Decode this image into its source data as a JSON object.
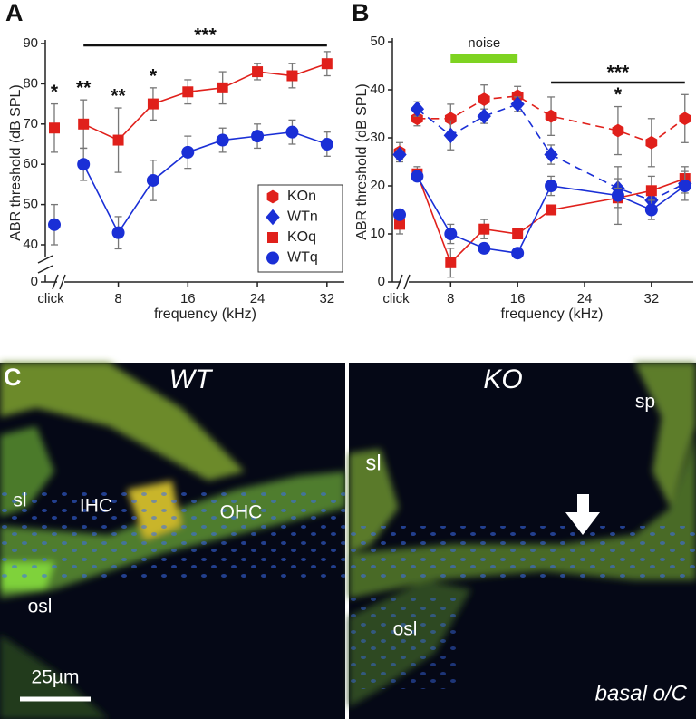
{
  "chart_data": [
    {
      "panel": "A",
      "type": "line",
      "y_label": "ABR threshold (dB SPL)",
      "x_label": "frequency (kHz)",
      "xlim": [
        2,
        34
      ],
      "xticks": [
        8,
        16,
        24,
        32
      ],
      "ylim": [
        0,
        90
      ],
      "y_break": [
        0,
        40
      ],
      "yticks": [
        0,
        40,
        50,
        60,
        70,
        80,
        90
      ],
      "click": {
        "label": "click",
        "annotation": "*"
      },
      "series": [
        {
          "color": "#e0201b",
          "marker": "square",
          "dash": false,
          "click_value": 69,
          "click_error": 6,
          "x": [
            4,
            8,
            12,
            16,
            20,
            24,
            28,
            32
          ],
          "values": [
            70,
            66,
            75,
            78,
            79,
            83,
            82,
            85
          ],
          "errors": [
            6,
            8,
            4,
            3,
            4,
            2,
            3,
            3
          ]
        },
        {
          "color": "#1a2fd6",
          "marker": "circle",
          "dash": false,
          "click_value": 45,
          "click_error": 5,
          "x": [
            4,
            8,
            12,
            16,
            20,
            24,
            28,
            32
          ],
          "values": [
            60,
            43,
            56,
            63,
            66,
            67,
            68,
            65
          ],
          "errors": [
            4,
            4,
            5,
            4,
            3,
            3,
            3,
            3
          ]
        }
      ],
      "annotations": [
        {
          "text": "**",
          "x": 4
        },
        {
          "text": "**",
          "x": 8
        },
        {
          "text": "*",
          "x": 12
        }
      ],
      "bracket": {
        "text": "***",
        "x": [
          4,
          32
        ]
      },
      "legend": [
        {
          "name": "KOn",
          "color": "#e0201b",
          "marker": "hexagon"
        },
        {
          "name": "WTn",
          "color": "#1a2fd6",
          "marker": "diamond"
        },
        {
          "name": "KOq",
          "color": "#e0201b",
          "marker": "square"
        },
        {
          "name": "WTq",
          "color": "#1a2fd6",
          "marker": "circle"
        }
      ],
      "legend_position": "lower right"
    },
    {
      "panel": "B",
      "type": "line",
      "y_label": "ABR threshold (dB SPL)",
      "x_label": "frequency (kHz)",
      "xlim": [
        3.2,
        37
      ],
      "xticks": [
        8,
        16,
        24,
        32
      ],
      "ylim": [
        0,
        50
      ],
      "yticks": [
        0,
        10,
        20,
        30,
        40,
        50
      ],
      "click": {
        "label": "click"
      },
      "series": [
        {
          "color": "#e0201b",
          "marker": "hexagon",
          "dash": true,
          "click_value": 27,
          "click_error": 2,
          "x": [
            4,
            8,
            12,
            16,
            20,
            28,
            32,
            36
          ],
          "values": [
            34,
            34,
            38,
            38.7,
            34.5,
            31.5,
            29,
            34
          ],
          "errors": [
            1.5,
            3,
            3,
            2,
            4,
            5,
            5,
            5
          ]
        },
        {
          "color": "#1a2fd6",
          "marker": "diamond",
          "dash": true,
          "click_value": 26.5,
          "click_error": 1,
          "x": [
            4,
            8,
            12,
            16,
            20,
            28,
            32,
            36
          ],
          "values": [
            36,
            30.5,
            34.5,
            37,
            26.5,
            19.5,
            17,
            20.5
          ],
          "errors": [
            1.5,
            3,
            1.5,
            1.5,
            2,
            2,
            1.5,
            2
          ]
        },
        {
          "color": "#e0201b",
          "marker": "square",
          "dash": false,
          "click_value": 12,
          "click_error": 2,
          "x": [
            4,
            8,
            12,
            16,
            20,
            28,
            32,
            36
          ],
          "values": [
            22.5,
            4,
            11,
            10,
            15,
            17.5,
            19,
            21.5
          ],
          "errors": [
            1.5,
            3,
            2,
            1,
            1,
            2,
            3,
            2.5
          ]
        },
        {
          "color": "#1a2fd6",
          "marker": "circle",
          "dash": false,
          "click_value": 14,
          "click_error": 1,
          "x": [
            4,
            8,
            12,
            16,
            20,
            28,
            32,
            36
          ],
          "values": [
            22,
            10,
            7,
            6,
            20,
            18,
            15,
            20
          ],
          "errors": [
            1,
            2,
            1,
            0.5,
            2,
            6,
            2,
            3
          ]
        }
      ],
      "annotations": [
        {
          "text": "*",
          "x": 28
        }
      ],
      "bracket": {
        "text": "***",
        "x": [
          20,
          36
        ]
      },
      "band": {
        "text": "noise",
        "x": [
          8,
          16
        ],
        "color": "#7ed321"
      }
    }
  ],
  "panel_c": {
    "label": "C",
    "left": {
      "title": "WT",
      "labels": [
        "sl",
        "IHC",
        "OHC",
        "osl"
      ],
      "scale_bar": "25µm"
    },
    "right": {
      "title": "KO",
      "labels": [
        "sl",
        "sp",
        "osl"
      ],
      "caption": "basal o/C"
    }
  }
}
